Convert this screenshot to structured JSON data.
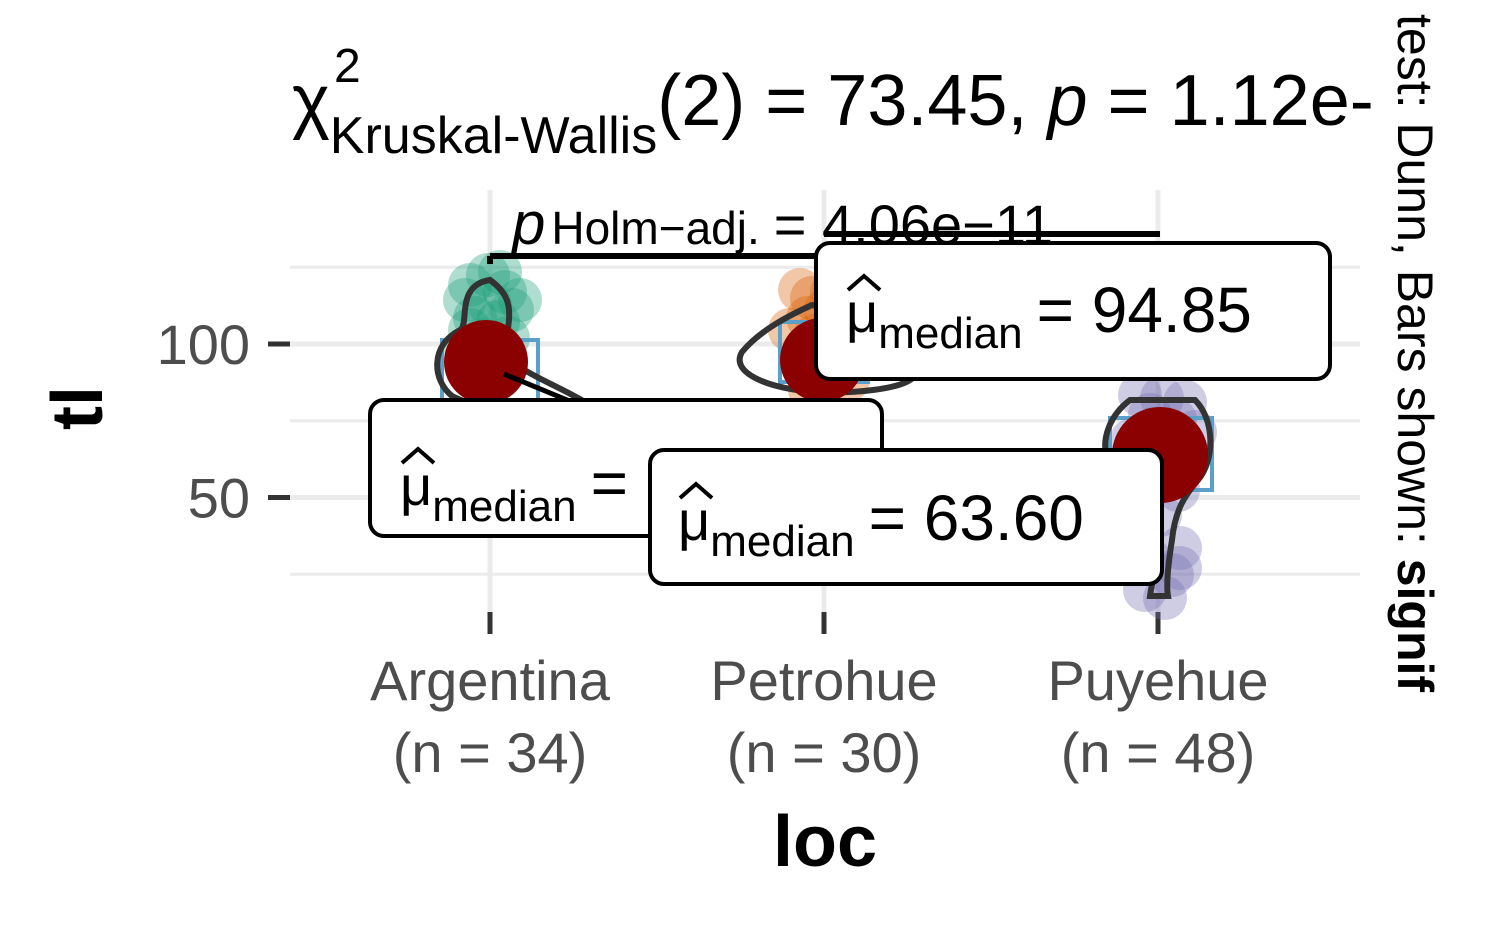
{
  "chart_data": {
    "type": "violin-box-scatter",
    "xlabel": "loc",
    "ylabel": "tl",
    "ylim": [
      10,
      135
    ],
    "yticks": [
      50,
      100
    ],
    "categories": [
      {
        "name": "Argentina",
        "n_label": "(n = 34)",
        "median": 93.95,
        "median_label_value": "93.95",
        "color": "#1b9e77"
      },
      {
        "name": "Petrohue",
        "n_label": "(n = 30)",
        "median": 94.85,
        "median_label_value": "94.85",
        "color": "#d95f02"
      },
      {
        "name": "Puyehue",
        "n_label": "(n = 48)",
        "median": 63.6,
        "median_label_value": "63.60",
        "color": "#7570b3"
      }
    ],
    "subtitle": {
      "chi": "χ",
      "sup": "2",
      "sub": "Kruskal-Wallis",
      "rest": "(2) = 73.45, ",
      "p": "p",
      "rest2": " = 1.12e-"
    },
    "median_prefix": "μ",
    "median_sub": "median",
    "pairwise": {
      "p_symbol": "p",
      "p_sub": "Holm−adj.",
      "value_text": "= 4.06e−11"
    },
    "caption_rotated": {
      "part1": "test: Dunn, Bars shown: ",
      "part2": "signif"
    },
    "grid": true
  }
}
